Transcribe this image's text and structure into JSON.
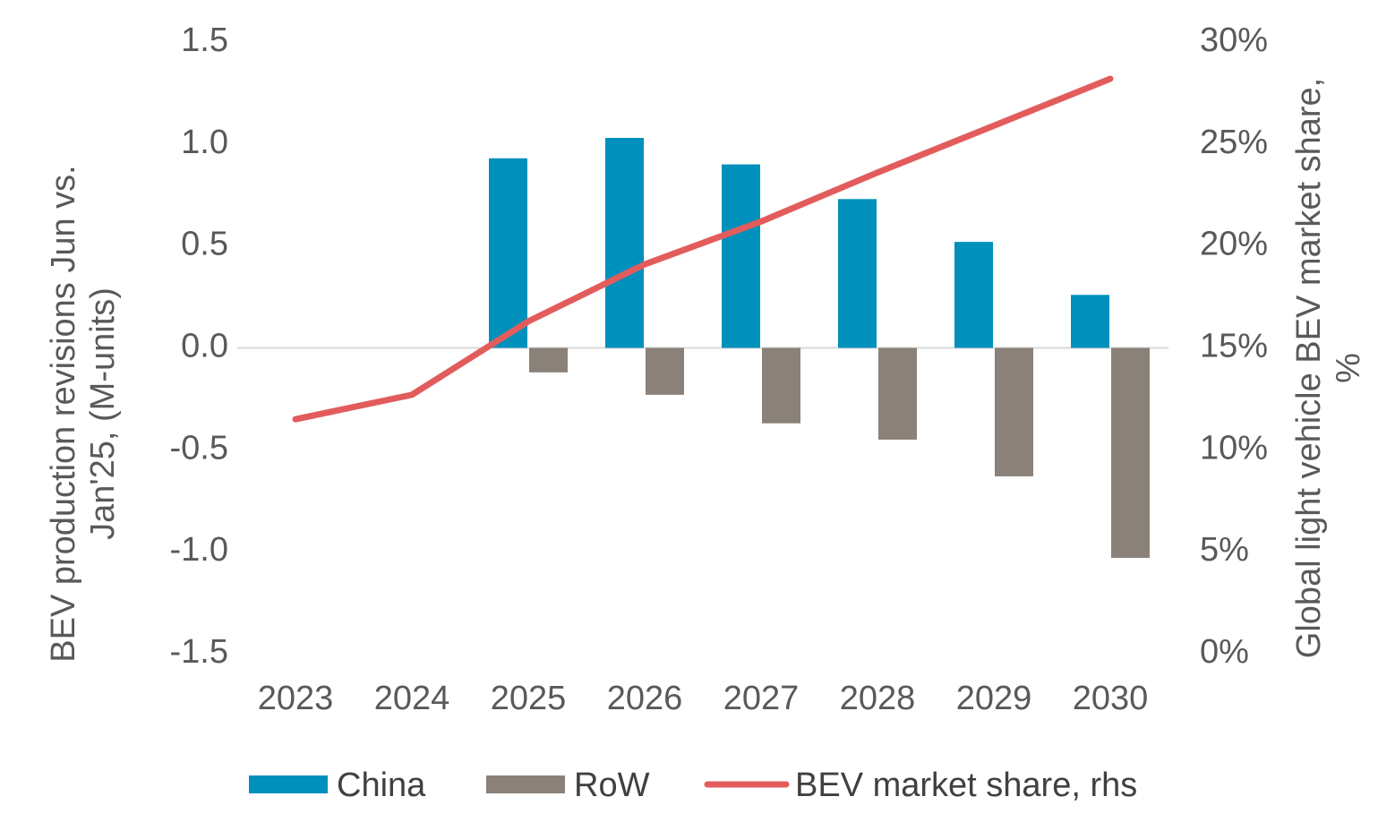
{
  "chart_data": {
    "type": "bar",
    "categories": [
      "2023",
      "2024",
      "2025",
      "2026",
      "2027",
      "2028",
      "2029",
      "2030"
    ],
    "series": [
      {
        "name": "China",
        "type": "bar",
        "axis": "left",
        "color": "#0090BC",
        "values": [
          0,
          0,
          0.93,
          1.03,
          0.9,
          0.73,
          0.52,
          0.26
        ]
      },
      {
        "name": "RoW",
        "type": "bar",
        "axis": "left",
        "color": "#8A8178",
        "values": [
          0,
          0,
          -0.12,
          -0.23,
          -0.37,
          -0.45,
          -0.63,
          -1.03
        ]
      },
      {
        "name": "BEV market share, rhs",
        "type": "line",
        "axis": "right",
        "color": "#E35C5C",
        "values": [
          11.5,
          12.7,
          16.3,
          19.1,
          21.2,
          23.6,
          25.9,
          28.2
        ]
      }
    ],
    "ylabel_left": "BEV production revisions Jun vs. Jan'25, (M-units)",
    "ylabel_right": "Global light vehicle BEV market share, %",
    "ylim_left": [
      -1.5,
      1.5
    ],
    "ylim_right": [
      0,
      30
    ],
    "yticks_left": [
      "1.5",
      "1.0",
      "0.5",
      "0.0",
      "-0.5",
      "-1.0",
      "-1.5"
    ],
    "yticks_right": [
      "30%",
      "25%",
      "20%",
      "15%",
      "10%",
      "5%",
      "0%"
    ],
    "grid": false,
    "legend_position": "bottom"
  }
}
